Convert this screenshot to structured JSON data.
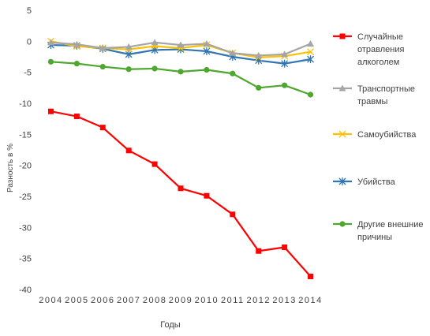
{
  "chart_data": {
    "type": "line",
    "title": "",
    "xlabel": "Годы",
    "ylabel": "Разность в %",
    "ylim": [
      -40,
      5
    ],
    "yticks": [
      5,
      0,
      -5,
      -10,
      -15,
      -20,
      -25,
      -30,
      -35,
      -40
    ],
    "grid": false,
    "legend_position": "right",
    "categories": [
      "2004",
      "2005",
      "2006",
      "2007",
      "2008",
      "2009",
      "2010",
      "2011",
      "2012",
      "2013",
      "2014"
    ],
    "series": [
      {
        "name": "Случайные отравления алкоголем",
        "legend_lines": [
          "Случайные",
          "отравления",
          "алкоголем"
        ],
        "color": "#ff0000",
        "marker": "square",
        "values": [
          -11.3,
          -12.1,
          -13.9,
          -17.6,
          -19.8,
          -23.7,
          -24.9,
          -27.9,
          -33.8,
          -33.2,
          -37.9
        ]
      },
      {
        "name": "Транспортные травмы",
        "legend_lines": [
          "Транспортные",
          "травмы"
        ],
        "color": "#a5a5a5",
        "marker": "triangle",
        "values": [
          -0.2,
          -0.5,
          -1.1,
          -0.9,
          -0.2,
          -0.6,
          -0.4,
          -1.9,
          -2.3,
          -2.1,
          -0.4
        ]
      },
      {
        "name": "Самоубийства",
        "legend_lines": [
          "Самоубийства"
        ],
        "color": "#ffc000",
        "marker": "x",
        "values": [
          0.0,
          -0.8,
          -1.1,
          -1.3,
          -0.8,
          -1.1,
          -0.6,
          -1.9,
          -2.6,
          -2.4,
          -1.7
        ]
      },
      {
        "name": "Убийства",
        "legend_lines": [
          "Убийства"
        ],
        "color": "#2e75b6",
        "marker": "star",
        "values": [
          -0.6,
          -0.7,
          -1.2,
          -2.1,
          -1.4,
          -1.3,
          -1.6,
          -2.5,
          -3.1,
          -3.6,
          -2.9
        ]
      },
      {
        "name": "Другие внешние причины",
        "legend_lines": [
          "Другие внешние",
          "причины"
        ],
        "color": "#4ea72e",
        "marker": "circle",
        "values": [
          -3.3,
          -3.6,
          -4.1,
          -4.5,
          -4.4,
          -4.9,
          -4.6,
          -5.2,
          -7.5,
          -7.1,
          -8.6
        ]
      }
    ]
  }
}
